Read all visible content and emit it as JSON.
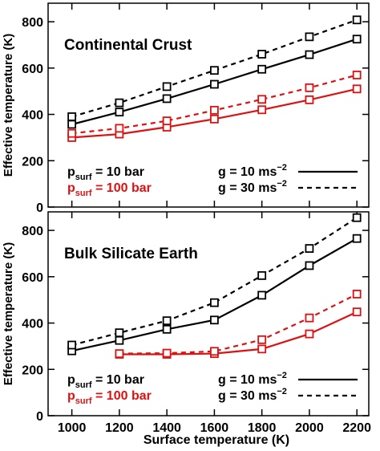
{
  "chart_data": [
    {
      "type": "line",
      "title": "Continental Crust",
      "ylabel": "Effective temperature (K)",
      "xlabel": "",
      "xlim": [
        900,
        2250
      ],
      "ylim": [
        0,
        880
      ],
      "x_ticks": [
        1000,
        1200,
        1400,
        1600,
        1800,
        2000,
        2200
      ],
      "y_ticks": [
        0,
        200,
        400,
        600,
        800
      ],
      "y_tick_labels": [
        "0",
        "200",
        "400",
        "600",
        "800"
      ],
      "grid": false,
      "legend": {
        "pressure": [
          {
            "base": "p",
            "sub": "surf",
            "rest": " = 10 bar",
            "color": "#000000"
          },
          {
            "base": "p",
            "sub": "surf",
            "rest": " = 100 bar",
            "color": "#dd1111"
          }
        ],
        "gravity": [
          {
            "base": "g = 10 ms",
            "sup": "−2",
            "line": "solid"
          },
          {
            "base": "g = 30 ms",
            "sup": "−2",
            "line": "dashed"
          }
        ]
      },
      "series": [
        {
          "pressure_bar": 10,
          "g": 10,
          "color": "#000000",
          "line": "solid",
          "x": [
            1000,
            1200,
            1400,
            1600,
            1800,
            2000,
            2200
          ],
          "y": [
            357,
            410,
            468,
            530,
            595,
            658,
            725
          ]
        },
        {
          "pressure_bar": 10,
          "g": 30,
          "color": "#000000",
          "line": "dashed",
          "x": [
            1000,
            1200,
            1400,
            1600,
            1800,
            2000,
            2200
          ],
          "y": [
            390,
            450,
            520,
            590,
            660,
            735,
            808
          ]
        },
        {
          "pressure_bar": 100,
          "g": 10,
          "color": "#dd1111",
          "line": "solid",
          "x": [
            1000,
            1200,
            1400,
            1600,
            1800,
            2000,
            2200
          ],
          "y": [
            300,
            315,
            345,
            380,
            420,
            463,
            510
          ]
        },
        {
          "pressure_bar": 100,
          "g": 30,
          "color": "#dd1111",
          "line": "dashed",
          "x": [
            1000,
            1200,
            1400,
            1600,
            1800,
            2000,
            2200
          ],
          "y": [
            318,
            340,
            372,
            418,
            465,
            515,
            570
          ]
        }
      ]
    },
    {
      "type": "line",
      "title": "Bulk Silicate Earth",
      "ylabel": "Effective temperature (K)",
      "xlabel": "Surface temperature (K)",
      "xlim": [
        900,
        2250
      ],
      "ylim": [
        0,
        880
      ],
      "x_ticks": [
        1000,
        1200,
        1400,
        1600,
        1800,
        2000,
        2200
      ],
      "x_tick_labels": [
        "1000",
        "1200",
        "1400",
        "1600",
        "1800",
        "2000",
        "2200"
      ],
      "y_ticks": [
        0,
        200,
        400,
        600,
        800
      ],
      "y_tick_labels": [
        "0",
        "200",
        "400",
        "600",
        "800"
      ],
      "grid": false,
      "legend": {
        "pressure": [
          {
            "base": "p",
            "sub": "surf",
            "rest": " = 10 bar",
            "color": "#000000"
          },
          {
            "base": "p",
            "sub": "surf",
            "rest": " = 100 bar",
            "color": "#dd1111"
          }
        ],
        "gravity": [
          {
            "base": "g = 10 ms",
            "sup": "−2",
            "line": "solid"
          },
          {
            "base": "g = 30 ms",
            "sup": "−2",
            "line": "dashed"
          }
        ]
      },
      "series": [
        {
          "pressure_bar": 10,
          "g": 10,
          "color": "#000000",
          "line": "solid",
          "x": [
            1000,
            1200,
            1400,
            1600,
            1800,
            2000,
            2200
          ],
          "y": [
            280,
            325,
            373,
            413,
            520,
            648,
            765
          ]
        },
        {
          "pressure_bar": 10,
          "g": 30,
          "color": "#000000",
          "line": "dashed",
          "x": [
            1000,
            1200,
            1400,
            1600,
            1800,
            2000,
            2200
          ],
          "y": [
            305,
            358,
            410,
            488,
            605,
            722,
            855
          ]
        },
        {
          "pressure_bar": 100,
          "g": 10,
          "color": "#dd1111",
          "line": "solid",
          "x": [
            1200,
            1400,
            1600,
            1800,
            2000,
            2200
          ],
          "y": [
            265,
            265,
            268,
            288,
            353,
            448
          ]
        },
        {
          "pressure_bar": 100,
          "g": 30,
          "color": "#dd1111",
          "line": "dashed",
          "x": [
            1200,
            1400,
            1600,
            1800,
            2000,
            2200
          ],
          "y": [
            268,
            270,
            278,
            328,
            422,
            525
          ]
        }
      ]
    }
  ]
}
